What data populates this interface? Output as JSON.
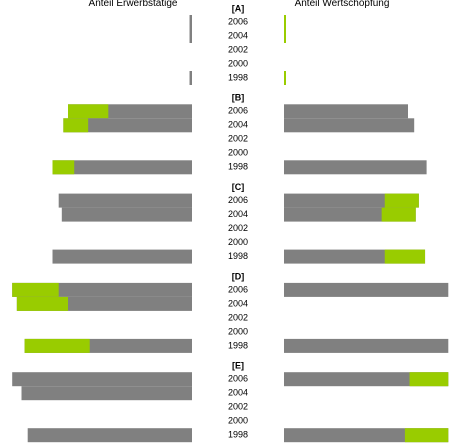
{
  "chart_data": {
    "type": "bar",
    "orientation": "horizontal",
    "layout": "butterfly",
    "left_title": "Anteil Erwerbstätige",
    "right_title": "Anteil Wertschöpfung",
    "years": [
      "2006",
      "2004",
      "2002",
      "2000",
      "1998"
    ],
    "colors": {
      "base": "#808080",
      "highlight": "#99cc00"
    },
    "groups": [
      {
        "label": "[A]",
        "rows": [
          {
            "year": "2006",
            "left_total": 0.8,
            "left_green": 0.0,
            "right_total": 0.4,
            "right_green": 0.4
          },
          {
            "year": "2004",
            "left_total": 0.8,
            "left_green": 0.0,
            "right_total": 0.4,
            "right_green": 0.4
          },
          {
            "year": "2002",
            "left_total": null,
            "left_green": null,
            "right_total": null,
            "right_green": null
          },
          {
            "year": "2000",
            "left_total": null,
            "left_green": null,
            "right_total": null,
            "right_green": null
          },
          {
            "year": "1998",
            "left_total": 0.8,
            "left_green": 0.0,
            "right_total": 0.4,
            "right_green": 0.4
          }
        ]
      },
      {
        "label": "[B]",
        "rows": [
          {
            "year": "2006",
            "left_total": 40.0,
            "left_green": 13.0,
            "right_total": 40.0,
            "right_green": 0.0
          },
          {
            "year": "2004",
            "left_total": 41.5,
            "left_green": 8.0,
            "right_total": 42.0,
            "right_green": 0.0
          },
          {
            "year": "2002",
            "left_total": null,
            "left_green": null,
            "right_total": null,
            "right_green": null
          },
          {
            "year": "2000",
            "left_total": null,
            "left_green": null,
            "right_total": null,
            "right_green": null
          },
          {
            "year": "1998",
            "left_total": 45.0,
            "left_green": 7.0,
            "right_total": 46.0,
            "right_green": 0.0
          }
        ]
      },
      {
        "label": "[C]",
        "rows": [
          {
            "year": "2006",
            "left_total": 43.0,
            "left_green": 0.0,
            "right_total": 43.5,
            "right_green": 11.0
          },
          {
            "year": "2004",
            "left_total": 42.0,
            "left_green": 0.0,
            "right_total": 42.5,
            "right_green": 11.0
          },
          {
            "year": "2002",
            "left_total": null,
            "left_green": null,
            "right_total": null,
            "right_green": null
          },
          {
            "year": "2000",
            "left_total": null,
            "left_green": null,
            "right_total": null,
            "right_green": null
          },
          {
            "year": "1998",
            "left_total": 45.0,
            "left_green": 0.0,
            "right_total": 45.5,
            "right_green": 13.0
          }
        ]
      },
      {
        "label": "[D]",
        "rows": [
          {
            "year": "2006",
            "left_total": 58.0,
            "left_green": 15.0,
            "right_total": 53.0,
            "right_green": 0.0
          },
          {
            "year": "2004",
            "left_total": 56.5,
            "left_green": 16.5,
            "right_total": null,
            "right_green": null
          },
          {
            "year": "2002",
            "left_total": null,
            "left_green": null,
            "right_total": null,
            "right_green": null
          },
          {
            "year": "2000",
            "left_total": null,
            "left_green": null,
            "right_total": null,
            "right_green": null
          },
          {
            "year": "1998",
            "left_total": 54.0,
            "left_green": 21.0,
            "right_total": 53.0,
            "right_green": 0.0
          }
        ]
      },
      {
        "label": "[E]",
        "rows": [
          {
            "year": "2006",
            "left_total": 58.0,
            "left_green": 0.0,
            "right_total": 53.0,
            "right_green": 12.5
          },
          {
            "year": "2004",
            "left_total": 55.0,
            "left_green": 0.0,
            "right_total": null,
            "right_green": null
          },
          {
            "year": "2002",
            "left_total": null,
            "left_green": null,
            "right_total": null,
            "right_green": null
          },
          {
            "year": "2000",
            "left_total": null,
            "left_green": null,
            "right_total": null,
            "right_green": null
          },
          {
            "year": "1998",
            "left_total": 53.0,
            "left_green": 0.0,
            "right_total": 53.0,
            "right_green": 14.0
          }
        ]
      }
    ]
  }
}
